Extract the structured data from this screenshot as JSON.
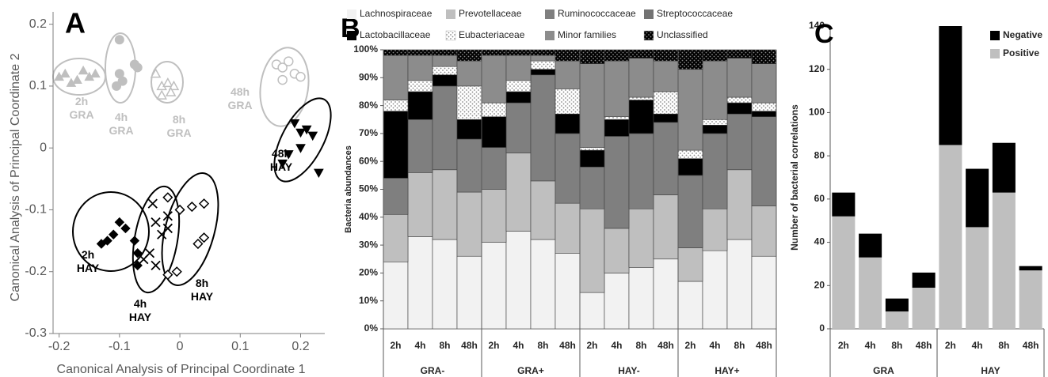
{
  "chart_data": [
    {
      "type": "scatter",
      "title": "A",
      "xlabel": "Canonical Analysis of Principal Coordinate 1",
      "ylabel": "Canonical Analysis of Principal Coordinate 2",
      "xlim": [
        -0.21,
        0.24
      ],
      "ylim": [
        -0.3,
        0.22
      ],
      "xticks": [
        -0.2,
        -0.1,
        0,
        0.1,
        0.2
      ],
      "yticks": [
        -0.3,
        -0.2,
        -0.1,
        0,
        0.1,
        0.2
      ],
      "series": [
        {
          "name": "2h GRA",
          "color": "#bfbfbf",
          "marker": "triangle",
          "x": [
            -0.19,
            -0.17,
            -0.16,
            -0.15,
            -0.18,
            -0.14,
            -0.2
          ],
          "y": [
            0.12,
            0.11,
            0.125,
            0.115,
            0.105,
            0.12,
            0.115
          ]
        },
        {
          "name": "4h GRA",
          "color": "#bfbfbf",
          "marker": "circle",
          "x": [
            -0.1,
            -0.1,
            -0.095,
            -0.105,
            -0.075,
            -0.07
          ],
          "y": [
            0.175,
            0.12,
            0.108,
            0.1,
            0.135,
            0.13
          ]
        },
        {
          "name": "8h GRA",
          "color": "#bfbfbf",
          "marker": "triangle-open",
          "x": [
            -0.04,
            -0.03,
            -0.02,
            -0.01,
            -0.03,
            -0.015
          ],
          "y": [
            0.12,
            0.1,
            0.105,
            0.1,
            0.085,
            0.09
          ]
        },
        {
          "name": "48h GRA",
          "color": "#bfbfbf",
          "marker": "circle-open",
          "x": [
            0.16,
            0.17,
            0.18,
            0.19,
            0.2,
            0.17
          ],
          "y": [
            0.135,
            0.13,
            0.14,
            0.12,
            0.115,
            0.11
          ]
        },
        {
          "name": "2h HAY",
          "color": "#000000",
          "marker": "diamond",
          "x": [
            -0.13,
            -0.12,
            -0.1,
            -0.11,
            -0.09,
            -0.075,
            -0.07,
            -0.07
          ],
          "y": [
            -0.155,
            -0.15,
            -0.12,
            -0.14,
            -0.13,
            -0.15,
            -0.17,
            -0.19
          ]
        },
        {
          "name": "4h HAY",
          "color": "#000000",
          "marker": "x",
          "x": [
            -0.045,
            -0.04,
            -0.03,
            -0.02,
            -0.05,
            -0.04,
            -0.06,
            -0.02
          ],
          "y": [
            -0.09,
            -0.12,
            -0.14,
            -0.13,
            -0.17,
            -0.19,
            -0.18,
            -0.11
          ]
        },
        {
          "name": "8h HAY",
          "color": "#000000",
          "marker": "diamond-open",
          "x": [
            -0.02,
            0.0,
            0.02,
            0.04,
            0.03,
            0.04,
            -0.005,
            -0.02
          ],
          "y": [
            -0.08,
            -0.1,
            -0.095,
            -0.09,
            -0.155,
            -0.145,
            -0.2,
            -0.205
          ]
        },
        {
          "name": "48h HAY",
          "color": "#000000",
          "marker": "triangle-down",
          "x": [
            0.19,
            0.2,
            0.21,
            0.22,
            0.23,
            0.18,
            0.17,
            0.2
          ],
          "y": [
            0.04,
            0.025,
            0.03,
            0.02,
            -0.04,
            -0.01,
            -0.025,
            0.0
          ]
        }
      ]
    },
    {
      "type": "stacked-bar",
      "title": "B",
      "ylabel": "Bacteria abundances",
      "legend": "top",
      "categories": [
        "2h",
        "4h",
        "8h",
        "48h",
        "2h",
        "4h",
        "8h",
        "48h",
        "2h",
        "4h",
        "8h",
        "48h",
        "2h",
        "4h",
        "8h",
        "48h"
      ],
      "groups": [
        "GRA-",
        "GRA+",
        "HAY-",
        "HAY+"
      ],
      "ylim": [
        0,
        100
      ],
      "yticks": [
        {
          "value": 0,
          "label": "0%"
        },
        {
          "value": 10,
          "label": "10%"
        },
        {
          "value": 20,
          "label": "20%"
        },
        {
          "value": 30,
          "label": "30%"
        },
        {
          "value": 40,
          "label": "40%"
        },
        {
          "value": 50,
          "label": "50%"
        },
        {
          "value": 60,
          "label": "60%"
        },
        {
          "value": 70,
          "label": "70%"
        },
        {
          "value": 80,
          "label": "80%"
        },
        {
          "value": 90,
          "label": "90%"
        },
        {
          "value": 100,
          "label": "100%"
        }
      ],
      "series": [
        {
          "name": "Lachnospiraceae",
          "color": "#f2f2f2",
          "values": [
            24,
            33,
            32,
            26,
            31,
            35,
            32,
            27,
            13,
            20,
            22,
            25,
            17,
            28,
            32,
            26
          ]
        },
        {
          "name": "Prevotellaceae",
          "color": "#bfbfbf",
          "values": [
            17,
            23,
            25,
            23,
            19,
            28,
            21,
            18,
            30,
            16,
            21,
            23,
            12,
            15,
            25,
            18
          ]
        },
        {
          "name": "Ruminococcaceae",
          "color": "#7f7f7f",
          "values": [
            13,
            19,
            30,
            19,
            15,
            18,
            38,
            25,
            15,
            33,
            27,
            26,
            26,
            27,
            20,
            32
          ]
        },
        {
          "name": "Streptococcaceae",
          "color": "#737373",
          "values": [
            0,
            0,
            0,
            0,
            0,
            0,
            0,
            0,
            0,
            0,
            0,
            0,
            0,
            0,
            0,
            0
          ]
        },
        {
          "name": "Lactobacillaceae",
          "color": "#000000",
          "values": [
            24,
            10,
            4,
            7,
            11,
            4,
            2,
            7,
            6,
            6,
            12,
            3,
            6,
            3,
            4,
            2
          ]
        },
        {
          "name": "Eubacteriaceae",
          "color": "#ffffff",
          "pattern": "dots",
          "values": [
            4,
            4,
            3,
            12,
            5,
            4,
            3,
            9,
            1,
            1,
            1,
            8,
            3,
            2,
            2,
            3
          ]
        },
        {
          "name": "Minor families",
          "color": "#8c8c8c",
          "values": [
            16,
            9,
            4,
            9,
            17,
            9,
            2,
            10,
            30,
            20,
            14,
            11,
            29,
            21,
            14,
            14
          ]
        },
        {
          "name": "Unclassified",
          "color": "#000000",
          "pattern": "dots",
          "values": [
            2,
            2,
            2,
            4,
            2,
            2,
            2,
            4,
            5,
            4,
            3,
            4,
            7,
            4,
            3,
            5
          ]
        }
      ]
    },
    {
      "type": "stacked-bar",
      "title": "C",
      "ylabel": "Number of bacterial correlations",
      "legend": "upper right",
      "categories": [
        "2h",
        "4h",
        "8h",
        "48h",
        "2h",
        "4h",
        "8h",
        "48h"
      ],
      "groups": [
        "GRA",
        "HAY"
      ],
      "ylim": [
        0,
        140
      ],
      "yticks": [
        0,
        20,
        40,
        60,
        80,
        100,
        120,
        140
      ],
      "series": [
        {
          "name": "Positive",
          "color": "#bfbfbf",
          "values": [
            52,
            33,
            8,
            19,
            85,
            47,
            63,
            27
          ]
        },
        {
          "name": "Negative",
          "color": "#000000",
          "values": [
            11,
            11,
            6,
            7,
            55,
            27,
            23,
            2
          ]
        }
      ]
    }
  ]
}
